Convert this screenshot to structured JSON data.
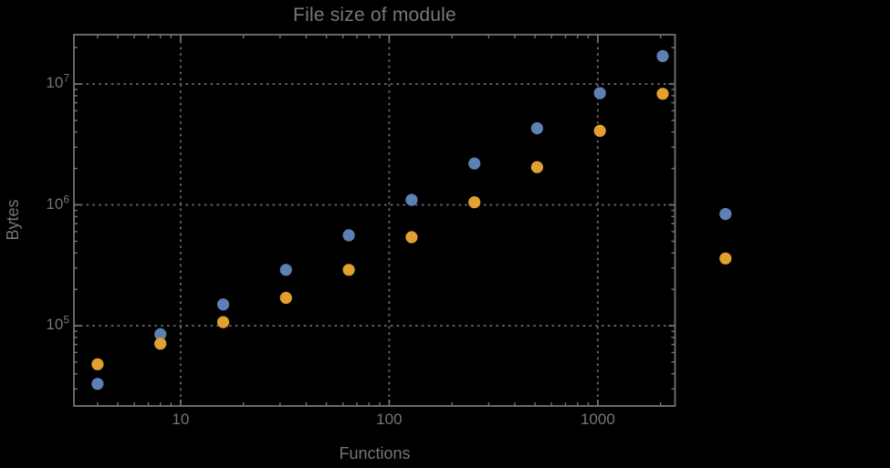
{
  "chart_data": {
    "type": "scatter",
    "title": "File size of module",
    "xlabel": "Functions",
    "ylabel": "Bytes",
    "x_scale": "log",
    "y_scale": "log",
    "grid": "dotted lines at decade majors only",
    "legend": "none",
    "plot_range_clipping": false,
    "background_color": "#000000",
    "frame_color": "#737373",
    "grid_color": "#646464",
    "text_color": "#757575",
    "x": [
      4,
      8,
      16,
      32,
      64,
      128,
      256,
      512,
      1024,
      2048,
      4096
    ],
    "series": [
      {
        "name": "series-blue",
        "color": "#5e81b5",
        "values": [
          33000,
          85000,
          150000,
          290000,
          560000,
          1100000,
          2200000,
          4300000,
          8400000,
          17000000,
          840000
        ]
      },
      {
        "name": "series-orange",
        "color": "#e2a030",
        "values": [
          48000,
          71000,
          107000,
          170000,
          290000,
          540000,
          1050000,
          2050000,
          4100000,
          8300000,
          360000
        ]
      }
    ],
    "x_axis": {
      "range_log10": [
        0.4886,
        3.3703
      ],
      "major_ticks": [
        {
          "value": 10,
          "label": "10"
        },
        {
          "value": 100,
          "label": "100"
        },
        {
          "value": 1000,
          "label": "1000"
        }
      ]
    },
    "y_axis": {
      "range_log10": [
        4.336,
        7.408
      ],
      "major_ticks": [
        {
          "value": 100000,
          "base": "10",
          "exp": "5"
        },
        {
          "value": 1000000,
          "base": "10",
          "exp": "6"
        },
        {
          "value": 10000000,
          "base": "10",
          "exp": "7"
        }
      ]
    }
  }
}
